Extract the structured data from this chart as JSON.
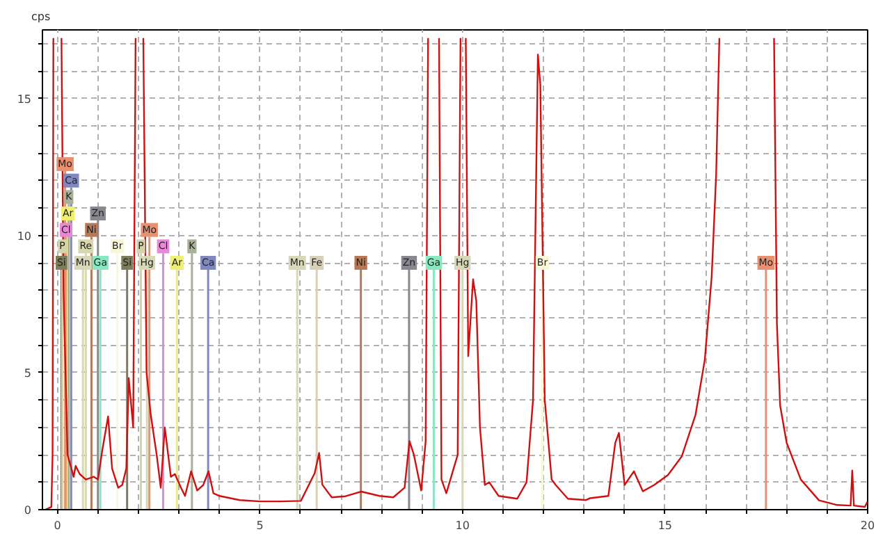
{
  "chart_data": {
    "type": "line",
    "ylabel": "cps",
    "xlim": [
      -0.37,
      20
    ],
    "ylim": [
      0,
      17.5
    ],
    "xticks": [
      0,
      {
        "value": 1,
        "label": null
      },
      {
        "value": 2,
        "label": null
      },
      {
        "value": 3,
        "label": null
      },
      {
        "value": 4,
        "label": null
      },
      5,
      {
        "value": 6,
        "label": null
      },
      {
        "value": 7,
        "label": null
      },
      {
        "value": 8,
        "label": null
      },
      {
        "value": 9,
        "label": null
      },
      10,
      {
        "value": 11,
        "label": null
      },
      {
        "value": 12,
        "label": null
      },
      {
        "value": 13,
        "label": null
      },
      {
        "value": 14,
        "label": null
      },
      15,
      {
        "value": 16,
        "label": null
      },
      {
        "value": 17,
        "label": null
      },
      {
        "value": 18,
        "label": null
      },
      {
        "value": 19,
        "label": null
      },
      20
    ],
    "yticks": [
      0,
      {
        "value": 1,
        "label": null
      },
      {
        "value": 2,
        "label": null
      },
      {
        "value": 3,
        "label": null
      },
      {
        "value": 4,
        "label": null
      },
      5,
      {
        "value": 6,
        "label": null
      },
      {
        "value": 7,
        "label": null
      },
      {
        "value": 8,
        "label": null
      },
      {
        "value": 9,
        "label": null
      },
      10,
      {
        "value": 11,
        "label": null
      },
      {
        "value": 12,
        "label": null
      },
      {
        "value": 13,
        "label": null
      },
      {
        "value": 14,
        "label": null
      },
      15,
      {
        "value": 16,
        "label": null
      },
      {
        "value": 17,
        "label": null
      }
    ],
    "grid": true,
    "marker": "none",
    "line_style": "solid",
    "series": [
      {
        "color": "#d01010",
        "x": [
          -0.3,
          -0.15,
          -0.12,
          -0.1,
          0.0,
          0.1,
          0.15,
          0.25,
          0.4,
          0.45,
          0.55,
          0.7,
          0.9,
          1.0,
          1.1,
          1.25,
          1.35,
          1.5,
          1.6,
          1.7,
          1.76,
          1.87,
          1.93,
          2.02,
          2.12,
          2.2,
          2.3,
          2.45,
          2.55,
          2.65,
          2.8,
          2.9,
          3.05,
          3.15,
          3.3,
          3.45,
          3.6,
          3.73,
          3.85,
          4.0,
          4.5,
          5.0,
          5.5,
          6.01,
          6.35,
          6.46,
          6.54,
          6.77,
          7.11,
          7.5,
          7.95,
          8.29,
          8.57,
          8.69,
          8.8,
          8.98,
          9.09,
          9.15,
          9.28,
          9.42,
          9.48,
          9.6,
          9.88,
          9.95,
          10.0,
          10.08,
          10.14,
          10.2,
          10.26,
          10.34,
          10.43,
          10.55,
          10.66,
          10.89,
          11.35,
          11.58,
          11.74,
          11.86,
          11.92,
          12.03,
          12.2,
          12.3,
          12.6,
          13.05,
          13.15,
          13.6,
          13.77,
          13.86,
          14.0,
          14.23,
          14.45,
          14.73,
          15.07,
          15.41,
          15.75,
          15.98,
          16.15,
          16.26,
          16.34,
          17.0,
          17.69,
          17.76,
          17.84,
          18.0,
          18.35,
          18.8,
          19.25,
          19.58,
          19.62,
          19.66,
          19.93,
          20.0
        ],
        "values": [
          0,
          0.1,
          2,
          17.2,
          null,
          17.2,
          8,
          2,
          1.2,
          1.6,
          1.3,
          1.1,
          1.2,
          1.1,
          2.1,
          3.4,
          1.5,
          0.8,
          0.9,
          1.5,
          4.8,
          3,
          17.2,
          null,
          17.2,
          5,
          3.5,
          2.0,
          0.8,
          3.0,
          1.2,
          1.3,
          0.8,
          0.5,
          1.4,
          0.7,
          0.9,
          1.4,
          0.6,
          0.5,
          0.35,
          0.3,
          0.3,
          0.32,
          1.33,
          2.07,
          0.91,
          0.45,
          0.49,
          0.66,
          0.5,
          0.45,
          0.8,
          2.5,
          2.0,
          0.7,
          2.5,
          17.2,
          null,
          17.2,
          1.1,
          0.6,
          2,
          17.2,
          null,
          17.2,
          5.6,
          7.0,
          8.4,
          7.6,
          3.0,
          0.9,
          1.0,
          0.5,
          0.4,
          1.0,
          4,
          16.6,
          15.5,
          4,
          1.1,
          0.9,
          0.4,
          0.35,
          0.42,
          0.5,
          2.44,
          2.8,
          0.9,
          1.4,
          0.67,
          0.9,
          1.26,
          1.94,
          3.45,
          5.47,
          8.5,
          12.2,
          17.2,
          null,
          17.2,
          6.8,
          3.8,
          2.44,
          1.1,
          0.34,
          0.17,
          0.15,
          1.43,
          0.15,
          0.1,
          0.3
        ]
      }
    ],
    "ref_lines": [
      {
        "axis": "x",
        "value": 0.1,
        "label": "Si",
        "color": "#7d7d5d"
      },
      {
        "axis": "x",
        "value": 0.12,
        "label": "P",
        "color": "#d4d4ac"
      },
      {
        "axis": "x",
        "value": 0.21,
        "label": "Cl",
        "color": "#e888d8"
      },
      {
        "axis": "x",
        "value": 0.26,
        "label": "Ar",
        "color": "#f0f070"
      },
      {
        "axis": "x",
        "value": 0.28,
        "label": "K",
        "color": "#a8b098"
      },
      {
        "axis": "x",
        "value": 0.34,
        "label": "Ca",
        "color": "#8088c0"
      },
      {
        "axis": "x",
        "value": 0.19,
        "label": "Mo",
        "color": "#e89070"
      },
      {
        "axis": "x",
        "value": 0.63,
        "label": "Mn",
        "color": "#d8d8b8"
      },
      {
        "axis": "x",
        "value": 0.7,
        "label": "Re",
        "color": "#d8d8b0"
      },
      {
        "axis": "x",
        "value": 0.84,
        "label": "Ni",
        "color": "#b87858"
      },
      {
        "axis": "x",
        "value": 1.0,
        "label": "Zn",
        "color": "#888890"
      },
      {
        "axis": "x",
        "value": 1.06,
        "label": "Ga",
        "color": "#88e8c0"
      },
      {
        "axis": "x",
        "value": 1.48,
        "label": "Br",
        "color": "#f8f8d8"
      },
      {
        "axis": "x",
        "value": 1.72,
        "label": "Si",
        "color": "#7d7d5d"
      },
      {
        "axis": "x",
        "value": 2.06,
        "label": "P",
        "color": "#d4d4ac"
      },
      {
        "axis": "x",
        "value": 2.21,
        "label": "Hg",
        "color": "#d8d8b8"
      },
      {
        "axis": "x",
        "value": 2.27,
        "label": "Mo",
        "color": "#e89070"
      },
      {
        "axis": "x",
        "value": 2.61,
        "label": "Cl",
        "color": "#e888d8"
      },
      {
        "axis": "x",
        "value": 2.95,
        "label": "Ar",
        "color": "#f0f070"
      },
      {
        "axis": "x",
        "value": 3.32,
        "label": "K",
        "color": "#a8b098"
      },
      {
        "axis": "x",
        "value": 3.72,
        "label": "Ca",
        "color": "#8088c0"
      },
      {
        "axis": "x",
        "value": 5.92,
        "label": "Mn",
        "color": "#d8d8b8"
      },
      {
        "axis": "x",
        "value": 6.4,
        "label": "Fe",
        "color": "#d8d0b8"
      },
      {
        "axis": "x",
        "value": 7.49,
        "label": "Ni",
        "color": "#b87858"
      },
      {
        "axis": "x",
        "value": 8.68,
        "label": "Zn",
        "color": "#888890"
      },
      {
        "axis": "x",
        "value": 9.29,
        "label": "Ga",
        "color": "#88e8c0"
      },
      {
        "axis": "x",
        "value": 10.0,
        "label": "Hg",
        "color": "#d8d8b8"
      },
      {
        "axis": "x",
        "value": 11.97,
        "label": "Br",
        "color": "#f8f8d8"
      },
      {
        "axis": "x",
        "value": 17.49,
        "label": "Mo",
        "color": "#e89070"
      }
    ]
  }
}
